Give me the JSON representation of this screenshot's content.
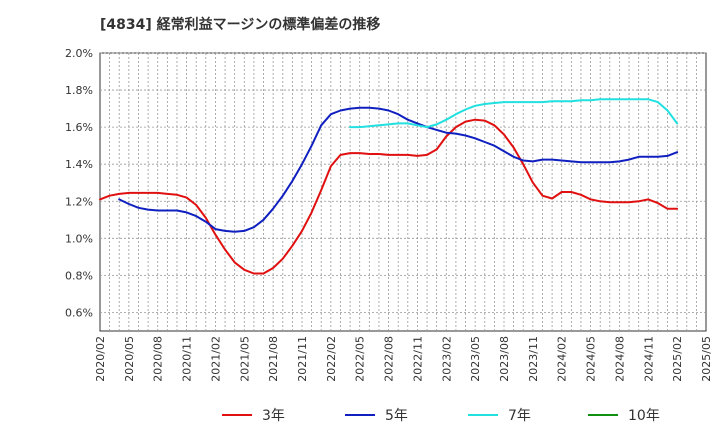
{
  "chart_data": {
    "type": "line",
    "title": "[4834]  経常利益マージンの標準偏差の推移",
    "xlabel": "",
    "ylabel": "",
    "ylim": [
      0.5,
      2.0
    ],
    "yticks": [
      0.6,
      0.8,
      1.0,
      1.2,
      1.4,
      1.6,
      1.8,
      2.0
    ],
    "ytick_labels": [
      "0.6%",
      "0.8%",
      "1.0%",
      "1.2%",
      "1.4%",
      "1.6%",
      "1.8%",
      "2.0%"
    ],
    "x_range": [
      "2020/02",
      "2025/05"
    ],
    "xtick_labels": [
      "2020/02",
      "2020/05",
      "2020/08",
      "2020/11",
      "2021/02",
      "2021/05",
      "2021/08",
      "2021/11",
      "2022/02",
      "2022/05",
      "2022/08",
      "2022/11",
      "2023/02",
      "2023/05",
      "2023/08",
      "2023/11",
      "2024/02",
      "2024/05",
      "2024/08",
      "2024/11",
      "2025/02",
      "2025/05"
    ],
    "grid": true,
    "legend_position": "bottom",
    "series": [
      {
        "name": "3年",
        "color": "#e01010",
        "x": [
          "2020/02",
          "2020/03",
          "2020/04",
          "2020/05",
          "2020/06",
          "2020/07",
          "2020/08",
          "2020/09",
          "2020/10",
          "2020/11",
          "2020/12",
          "2021/01",
          "2021/02",
          "2021/03",
          "2021/04",
          "2021/05",
          "2021/06",
          "2021/07",
          "2021/08",
          "2021/09",
          "2021/10",
          "2021/11",
          "2021/12",
          "2022/01",
          "2022/02",
          "2022/03",
          "2022/04",
          "2022/05",
          "2022/06",
          "2022/07",
          "2022/08",
          "2022/09",
          "2022/10",
          "2022/11",
          "2022/12",
          "2023/01",
          "2023/02",
          "2023/03",
          "2023/04",
          "2023/05",
          "2023/06",
          "2023/07",
          "2023/08",
          "2023/09",
          "2023/10",
          "2023/11",
          "2023/12",
          "2024/01",
          "2024/02",
          "2024/03",
          "2024/04",
          "2024/05",
          "2024/06",
          "2024/07",
          "2024/08",
          "2024/09",
          "2024/10",
          "2024/11",
          "2024/12",
          "2025/01",
          "2025/02"
        ],
        "values": [
          1.21,
          1.23,
          1.24,
          1.245,
          1.245,
          1.245,
          1.245,
          1.24,
          1.235,
          1.22,
          1.18,
          1.11,
          1.02,
          0.94,
          0.87,
          0.83,
          0.81,
          0.81,
          0.84,
          0.89,
          0.96,
          1.04,
          1.14,
          1.26,
          1.39,
          1.45,
          1.46,
          1.46,
          1.455,
          1.455,
          1.45,
          1.45,
          1.45,
          1.445,
          1.45,
          1.48,
          1.55,
          1.6,
          1.63,
          1.64,
          1.635,
          1.61,
          1.56,
          1.49,
          1.4,
          1.3,
          1.23,
          1.215,
          1.25,
          1.25,
          1.235,
          1.21,
          1.2,
          1.195,
          1.195,
          1.195,
          1.2,
          1.21,
          1.19,
          1.16,
          1.16
        ]
      },
      {
        "name": "5年",
        "color": "#1020c0",
        "x": [
          "2020/04",
          "2020/05",
          "2020/06",
          "2020/07",
          "2020/08",
          "2020/09",
          "2020/10",
          "2020/11",
          "2020/12",
          "2021/01",
          "2021/02",
          "2021/03",
          "2021/04",
          "2021/05",
          "2021/06",
          "2021/07",
          "2021/08",
          "2021/09",
          "2021/10",
          "2021/11",
          "2021/12",
          "2022/01",
          "2022/02",
          "2022/03",
          "2022/04",
          "2022/05",
          "2022/06",
          "2022/07",
          "2022/08",
          "2022/09",
          "2022/10",
          "2022/11",
          "2022/12",
          "2023/01",
          "2023/02",
          "2023/03",
          "2023/04",
          "2023/05",
          "2023/06",
          "2023/07",
          "2023/08",
          "2023/09",
          "2023/10",
          "2023/11",
          "2023/12",
          "2024/01",
          "2024/02",
          "2024/03",
          "2024/04",
          "2024/05",
          "2024/06",
          "2024/07",
          "2024/08",
          "2024/09",
          "2024/10",
          "2024/11",
          "2024/12",
          "2025/01",
          "2025/02"
        ],
        "values": [
          1.21,
          1.185,
          1.165,
          1.155,
          1.15,
          1.15,
          1.15,
          1.14,
          1.12,
          1.09,
          1.05,
          1.04,
          1.035,
          1.04,
          1.06,
          1.1,
          1.16,
          1.23,
          1.31,
          1.4,
          1.5,
          1.61,
          1.67,
          1.69,
          1.7,
          1.705,
          1.705,
          1.7,
          1.69,
          1.67,
          1.64,
          1.62,
          1.6,
          1.585,
          1.57,
          1.565,
          1.555,
          1.54,
          1.52,
          1.5,
          1.47,
          1.44,
          1.42,
          1.415,
          1.425,
          1.425,
          1.42,
          1.415,
          1.41,
          1.41,
          1.41,
          1.41,
          1.415,
          1.425,
          1.44,
          1.44,
          1.44,
          1.445,
          1.465
        ]
      },
      {
        "name": "7年",
        "color": "#20e0e0",
        "x": [
          "2022/04",
          "2022/05",
          "2022/06",
          "2022/07",
          "2022/08",
          "2022/09",
          "2022/10",
          "2022/11",
          "2022/12",
          "2023/01",
          "2023/02",
          "2023/03",
          "2023/04",
          "2023/05",
          "2023/06",
          "2023/07",
          "2023/08",
          "2023/09",
          "2023/10",
          "2023/11",
          "2023/12",
          "2024/01",
          "2024/02",
          "2024/03",
          "2024/04",
          "2024/05",
          "2024/06",
          "2024/07",
          "2024/08",
          "2024/09",
          "2024/10",
          "2024/11",
          "2024/12",
          "2025/01",
          "2025/02"
        ],
        "values": [
          1.6,
          1.6,
          1.605,
          1.61,
          1.615,
          1.62,
          1.62,
          1.61,
          1.6,
          1.615,
          1.64,
          1.67,
          1.695,
          1.715,
          1.725,
          1.73,
          1.735,
          1.735,
          1.735,
          1.735,
          1.735,
          1.74,
          1.74,
          1.74,
          1.745,
          1.745,
          1.75,
          1.75,
          1.75,
          1.75,
          1.75,
          1.75,
          1.735,
          1.69,
          1.62
        ]
      },
      {
        "name": "10年",
        "color": "#109010",
        "x": [],
        "values": []
      }
    ]
  }
}
